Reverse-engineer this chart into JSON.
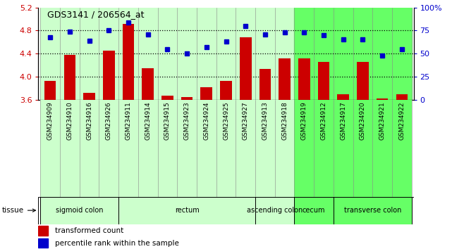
{
  "title": "GDS3141 / 206564_at",
  "samples": [
    "GSM234909",
    "GSM234910",
    "GSM234916",
    "GSM234926",
    "GSM234911",
    "GSM234914",
    "GSM234915",
    "GSM234923",
    "GSM234924",
    "GSM234925",
    "GSM234927",
    "GSM234913",
    "GSM234918",
    "GSM234919",
    "GSM234912",
    "GSM234917",
    "GSM234920",
    "GSM234921",
    "GSM234922"
  ],
  "bar_values": [
    3.93,
    4.38,
    3.72,
    4.45,
    4.91,
    4.14,
    3.67,
    3.64,
    3.82,
    3.92,
    4.68,
    4.13,
    4.31,
    4.32,
    4.26,
    3.69,
    4.26,
    3.62,
    3.69
  ],
  "dot_values": [
    68,
    74,
    64,
    75,
    84,
    71,
    55,
    50,
    57,
    63,
    80,
    71,
    73,
    73,
    70,
    65,
    65,
    48,
    55
  ],
  "bar_color": "#cc0000",
  "dot_color": "#0000cc",
  "ylim_left": [
    3.6,
    5.2
  ],
  "ylim_right": [
    0,
    100
  ],
  "yticks_left": [
    3.6,
    4.0,
    4.4,
    4.8,
    5.2
  ],
  "yticks_right": [
    0,
    25,
    50,
    75,
    100
  ],
  "ytick_labels_left": [
    "3.6",
    "4.0",
    "4.4",
    "4.8",
    "5.2"
  ],
  "ytick_labels_right": [
    "0",
    "25",
    "50",
    "75",
    "100%"
  ],
  "hlines": [
    4.0,
    4.4,
    4.8
  ],
  "tissue_groups": [
    {
      "label": "sigmoid colon",
      "start": 0,
      "end": 4,
      "color": "#ccffcc"
    },
    {
      "label": "rectum",
      "start": 4,
      "end": 11,
      "color": "#ccffcc"
    },
    {
      "label": "ascending colon",
      "start": 11,
      "end": 13,
      "color": "#ccffcc"
    },
    {
      "label": "cecum",
      "start": 13,
      "end": 15,
      "color": "#66ff66"
    },
    {
      "label": "transverse colon",
      "start": 15,
      "end": 19,
      "color": "#66ff66"
    }
  ],
  "legend_items": [
    {
      "color": "#cc0000",
      "label": "transformed count"
    },
    {
      "color": "#0000cc",
      "label": "percentile rank within the sample"
    }
  ],
  "bar_width": 0.6
}
